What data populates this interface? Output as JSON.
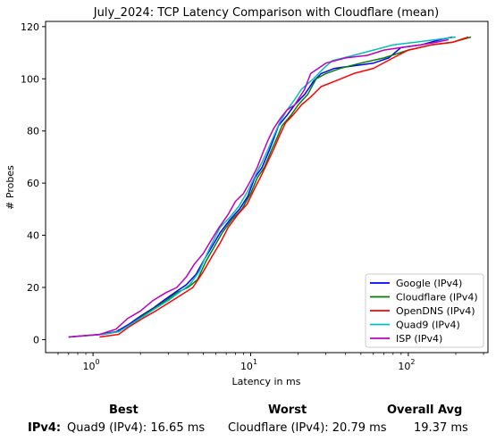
{
  "chart_data": {
    "type": "line",
    "title": "July_2024: TCP Latency Comparison with Cloudflare (mean)",
    "xlabel": "Latency in ms",
    "ylabel": "# Probes",
    "x_scale": "log",
    "xlim": [
      0.5,
      320
    ],
    "ylim": [
      -5,
      122
    ],
    "x_ticks": [
      1,
      10,
      100
    ],
    "y_ticks": [
      0,
      20,
      40,
      60,
      80,
      100,
      120
    ],
    "legend_position": "lower-right",
    "series": [
      {
        "name": "Google (IPv4)",
        "color": "#0000ff",
        "points": [
          [
            0.7,
            1
          ],
          [
            1.1,
            2
          ],
          [
            1.4,
            3
          ],
          [
            1.7,
            6
          ],
          [
            2.0,
            9
          ],
          [
            2.4,
            12
          ],
          [
            2.8,
            15
          ],
          [
            3.3,
            18
          ],
          [
            3.9,
            21
          ],
          [
            4.5,
            25
          ],
          [
            5.0,
            30
          ],
          [
            5.6,
            35
          ],
          [
            6.4,
            41
          ],
          [
            7.4,
            46
          ],
          [
            8.5,
            50
          ],
          [
            9.6,
            55
          ],
          [
            10.6,
            62
          ],
          [
            11.8,
            66
          ],
          [
            13.0,
            72
          ],
          [
            14.0,
            77
          ],
          [
            15.0,
            82
          ],
          [
            17.0,
            86
          ],
          [
            19.0,
            90
          ],
          [
            22.0,
            94
          ],
          [
            25.0,
            99
          ],
          [
            28.0,
            102
          ],
          [
            34.0,
            104
          ],
          [
            45.0,
            105
          ],
          [
            60.0,
            106
          ],
          [
            75.0,
            108
          ],
          [
            90.0,
            112
          ],
          [
            120.0,
            113
          ],
          [
            160.0,
            115
          ],
          [
            190.0,
            116
          ]
        ]
      },
      {
        "name": "Cloudflare (IPv4)",
        "color": "#008000",
        "points": [
          [
            0.7,
            1
          ],
          [
            1.15,
            2
          ],
          [
            1.45,
            3
          ],
          [
            1.75,
            6
          ],
          [
            2.05,
            9
          ],
          [
            2.45,
            12
          ],
          [
            2.9,
            15
          ],
          [
            3.4,
            18
          ],
          [
            4.0,
            20
          ],
          [
            4.6,
            23
          ],
          [
            5.2,
            30
          ],
          [
            5.8,
            35
          ],
          [
            6.6,
            41
          ],
          [
            7.6,
            46
          ],
          [
            8.8,
            50
          ],
          [
            10.0,
            56
          ],
          [
            11.0,
            62
          ],
          [
            12.2,
            66
          ],
          [
            13.4,
            72
          ],
          [
            14.6,
            77
          ],
          [
            15.8,
            82
          ],
          [
            18.0,
            86
          ],
          [
            20.0,
            90
          ],
          [
            23.0,
            94
          ],
          [
            26.0,
            100
          ],
          [
            30.0,
            102
          ],
          [
            37.0,
            104
          ],
          [
            50.0,
            106
          ],
          [
            70.0,
            108
          ],
          [
            100.0,
            111
          ],
          [
            140.0,
            113
          ],
          [
            190.0,
            114
          ],
          [
            250.0,
            116
          ]
        ]
      },
      {
        "name": "OpenDNS (IPv4)",
        "color": "#ff0000",
        "points": [
          [
            1.1,
            1
          ],
          [
            1.45,
            2
          ],
          [
            1.7,
            5
          ],
          [
            2.05,
            8
          ],
          [
            2.5,
            11
          ],
          [
            3.0,
            14
          ],
          [
            3.6,
            17
          ],
          [
            4.3,
            20
          ],
          [
            5.0,
            26
          ],
          [
            5.7,
            32
          ],
          [
            6.4,
            37
          ],
          [
            7.2,
            43
          ],
          [
            8.3,
            48
          ],
          [
            9.5,
            52
          ],
          [
            10.6,
            58
          ],
          [
            11.7,
            63
          ],
          [
            12.8,
            68
          ],
          [
            14.0,
            73
          ],
          [
            15.2,
            78
          ],
          [
            16.6,
            83
          ],
          [
            18.5,
            86
          ],
          [
            21.0,
            90
          ],
          [
            24.0,
            93
          ],
          [
            28.0,
            97
          ],
          [
            34.0,
            99
          ],
          [
            45.0,
            102
          ],
          [
            60.0,
            104
          ],
          [
            80.0,
            108
          ],
          [
            100.0,
            111
          ],
          [
            140.0,
            113
          ],
          [
            190.0,
            114
          ],
          [
            240.0,
            116
          ]
        ]
      },
      {
        "name": "Quad9 (IPv4)",
        "color": "#00bfbf",
        "points": [
          [
            0.7,
            1
          ],
          [
            1.15,
            2
          ],
          [
            1.45,
            3
          ],
          [
            1.75,
            6
          ],
          [
            2.1,
            9
          ],
          [
            2.5,
            12
          ],
          [
            3.0,
            15
          ],
          [
            3.5,
            18
          ],
          [
            4.1,
            21
          ],
          [
            4.7,
            26
          ],
          [
            5.2,
            32
          ],
          [
            5.8,
            38
          ],
          [
            6.4,
            43
          ],
          [
            7.4,
            47
          ],
          [
            8.4,
            51
          ],
          [
            9.6,
            57
          ],
          [
            10.7,
            63
          ],
          [
            11.8,
            68
          ],
          [
            12.9,
            73
          ],
          [
            14.0,
            78
          ],
          [
            15.2,
            83
          ],
          [
            17.0,
            88
          ],
          [
            19.0,
            92
          ],
          [
            21.0,
            96
          ],
          [
            25.0,
            100
          ],
          [
            29.0,
            104
          ],
          [
            33.0,
            107
          ],
          [
            45.0,
            109
          ],
          [
            60.0,
            111
          ],
          [
            80.0,
            113
          ],
          [
            110.0,
            114
          ],
          [
            150.0,
            115
          ],
          [
            200.0,
            116
          ]
        ]
      },
      {
        "name": "ISP (IPv4)",
        "color": "#bf00bf",
        "points": [
          [
            0.7,
            1
          ],
          [
            1.1,
            2
          ],
          [
            1.4,
            4
          ],
          [
            1.65,
            8
          ],
          [
            2.0,
            11
          ],
          [
            2.4,
            15
          ],
          [
            2.9,
            18
          ],
          [
            3.4,
            20
          ],
          [
            3.9,
            24
          ],
          [
            4.4,
            29
          ],
          [
            5.0,
            33
          ],
          [
            5.6,
            38
          ],
          [
            6.3,
            43
          ],
          [
            7.2,
            48
          ],
          [
            8.0,
            53
          ],
          [
            9.0,
            56
          ],
          [
            10.0,
            61
          ],
          [
            11.0,
            66
          ],
          [
            12.0,
            72
          ],
          [
            13.0,
            77
          ],
          [
            14.0,
            81
          ],
          [
            15.5,
            85
          ],
          [
            17.0,
            88
          ],
          [
            19.0,
            90
          ],
          [
            22.0,
            96
          ],
          [
            24.0,
            102
          ],
          [
            30.0,
            106
          ],
          [
            40.0,
            108
          ],
          [
            55.0,
            109
          ],
          [
            70.0,
            111
          ],
          [
            90.0,
            112
          ],
          [
            120.0,
            113
          ],
          [
            150.0,
            114
          ],
          [
            180.0,
            115
          ]
        ]
      }
    ]
  },
  "stats": {
    "headers": {
      "best": "Best",
      "worst": "Worst",
      "overall": "Overall Avg"
    },
    "row_label": "IPv4:",
    "best": "Quad9 (IPv4): 16.65 ms",
    "worst": "Cloudflare (IPv4): 20.79 ms",
    "overall": "19.37 ms"
  }
}
